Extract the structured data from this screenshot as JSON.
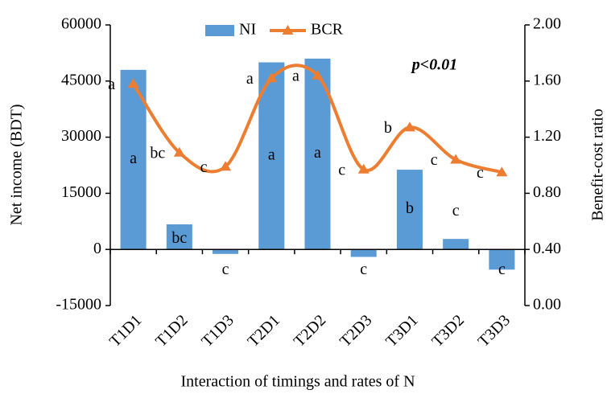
{
  "chart_data": {
    "type": "bar-line",
    "y_label": "Net income (BDT)",
    "y2_label": "Benefit-cost ratio",
    "x_label": "Interaction of timings and rates of N",
    "annotation": "p<0.01",
    "categories": [
      "T1D1",
      "T1D2",
      "T1D3",
      "T2D1",
      "T2D2",
      "T2D3",
      "T3D1",
      "T3D2",
      "T3D3"
    ],
    "series": [
      {
        "name": "NI",
        "type": "bar",
        "color": "#5b9bd5",
        "values": [
          48000,
          6700,
          -1200,
          50000,
          51000,
          -2000,
          21300,
          2800,
          -5400
        ],
        "letters": [
          "a",
          "bc",
          "c",
          "a",
          "a",
          "c",
          "b",
          "c",
          "c"
        ]
      },
      {
        "name": "BCR",
        "type": "line",
        "axis": "y2",
        "color": "#ed7d31",
        "values": [
          1.58,
          1.09,
          0.99,
          1.62,
          1.64,
          0.97,
          1.27,
          1.04,
          0.95
        ],
        "letters": [
          "a",
          "bc",
          "c",
          "a",
          "a",
          "c",
          "b",
          "c",
          "c"
        ]
      }
    ],
    "ylim": [
      -15000,
      60000
    ],
    "yticks": [
      -15000,
      0,
      15000,
      30000,
      45000,
      60000
    ],
    "y2lim": [
      0,
      2
    ],
    "y2ticks": [
      {
        "value": 0,
        "label": "0.00"
      },
      {
        "value": 0.4,
        "label": "0.40"
      },
      {
        "value": 0.8,
        "label": "0.80"
      },
      {
        "value": 1.2,
        "label": "1.20"
      },
      {
        "value": 1.6,
        "label": "1.60"
      },
      {
        "value": 2,
        "label": "2.00"
      }
    ]
  }
}
